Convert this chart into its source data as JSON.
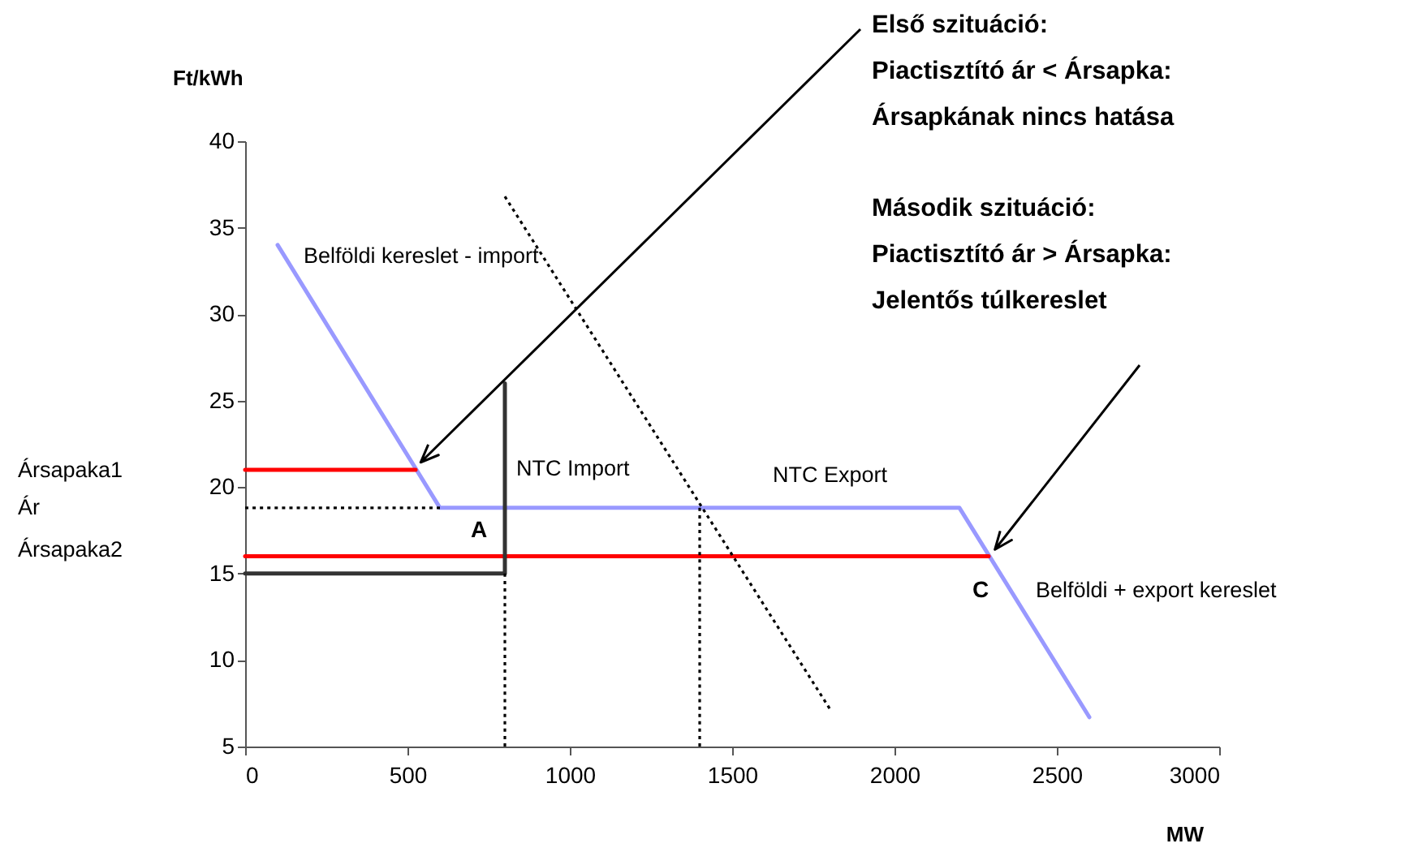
{
  "chart_data": {
    "type": "line",
    "xlabel": "MW",
    "ylabel": "Ft/kWh",
    "xlim": [
      0,
      3000
    ],
    "xticks": [
      0,
      500,
      1000,
      1500,
      2000,
      2500,
      3000
    ],
    "ylim": [
      5,
      40
    ],
    "yticks": [
      5,
      10,
      15,
      20,
      25,
      30,
      35,
      40
    ],
    "marker": "none",
    "series": [
      {
        "color": "#9999ff",
        "x": [
          100,
          600,
          2200,
          2600
        ],
        "values": [
          34,
          18.8,
          18.8,
          6.7
        ]
      },
      {
        "color": "#ff0000",
        "x": [
          0,
          525
        ],
        "values": [
          21,
          21
        ]
      },
      {
        "color": "#000000",
        "line_style": "dotted",
        "x": [
          0,
          600
        ],
        "values": [
          18.8,
          18.8
        ]
      },
      {
        "color": "#ff0000",
        "x": [
          0,
          2290
        ],
        "values": [
          16,
          16
        ]
      },
      {
        "color": "#333333",
        "x": [
          0,
          800,
          800
        ],
        "values": [
          15,
          15,
          26
        ]
      },
      {
        "color": "#000000",
        "line_style": "dotted",
        "x": [
          800,
          800
        ],
        "values": [
          5,
          15
        ]
      },
      {
        "color": "#000000",
        "line_style": "dotted",
        "x": [
          1400,
          1400
        ],
        "values": [
          5,
          18.8
        ]
      },
      {
        "color": "#000000",
        "line_style": "dotted",
        "x": [
          800,
          1800
        ],
        "values": [
          36.8,
          7.2
        ]
      }
    ],
    "annotations": [
      "Első szituáció:\nPiactisztító ár < Ársapka:\nÁrsapkának nincs hatása",
      "Második szituáció:\nPiactisztító ár > Ársapka:\nJelentős túlkereslet",
      "Belföldi kereslet - import",
      "NTC Import",
      "A",
      "NTC Export",
      "C",
      "Belföldi + export kereslet",
      "Ársapaka1",
      "Ár",
      "Ársapaka2"
    ]
  }
}
